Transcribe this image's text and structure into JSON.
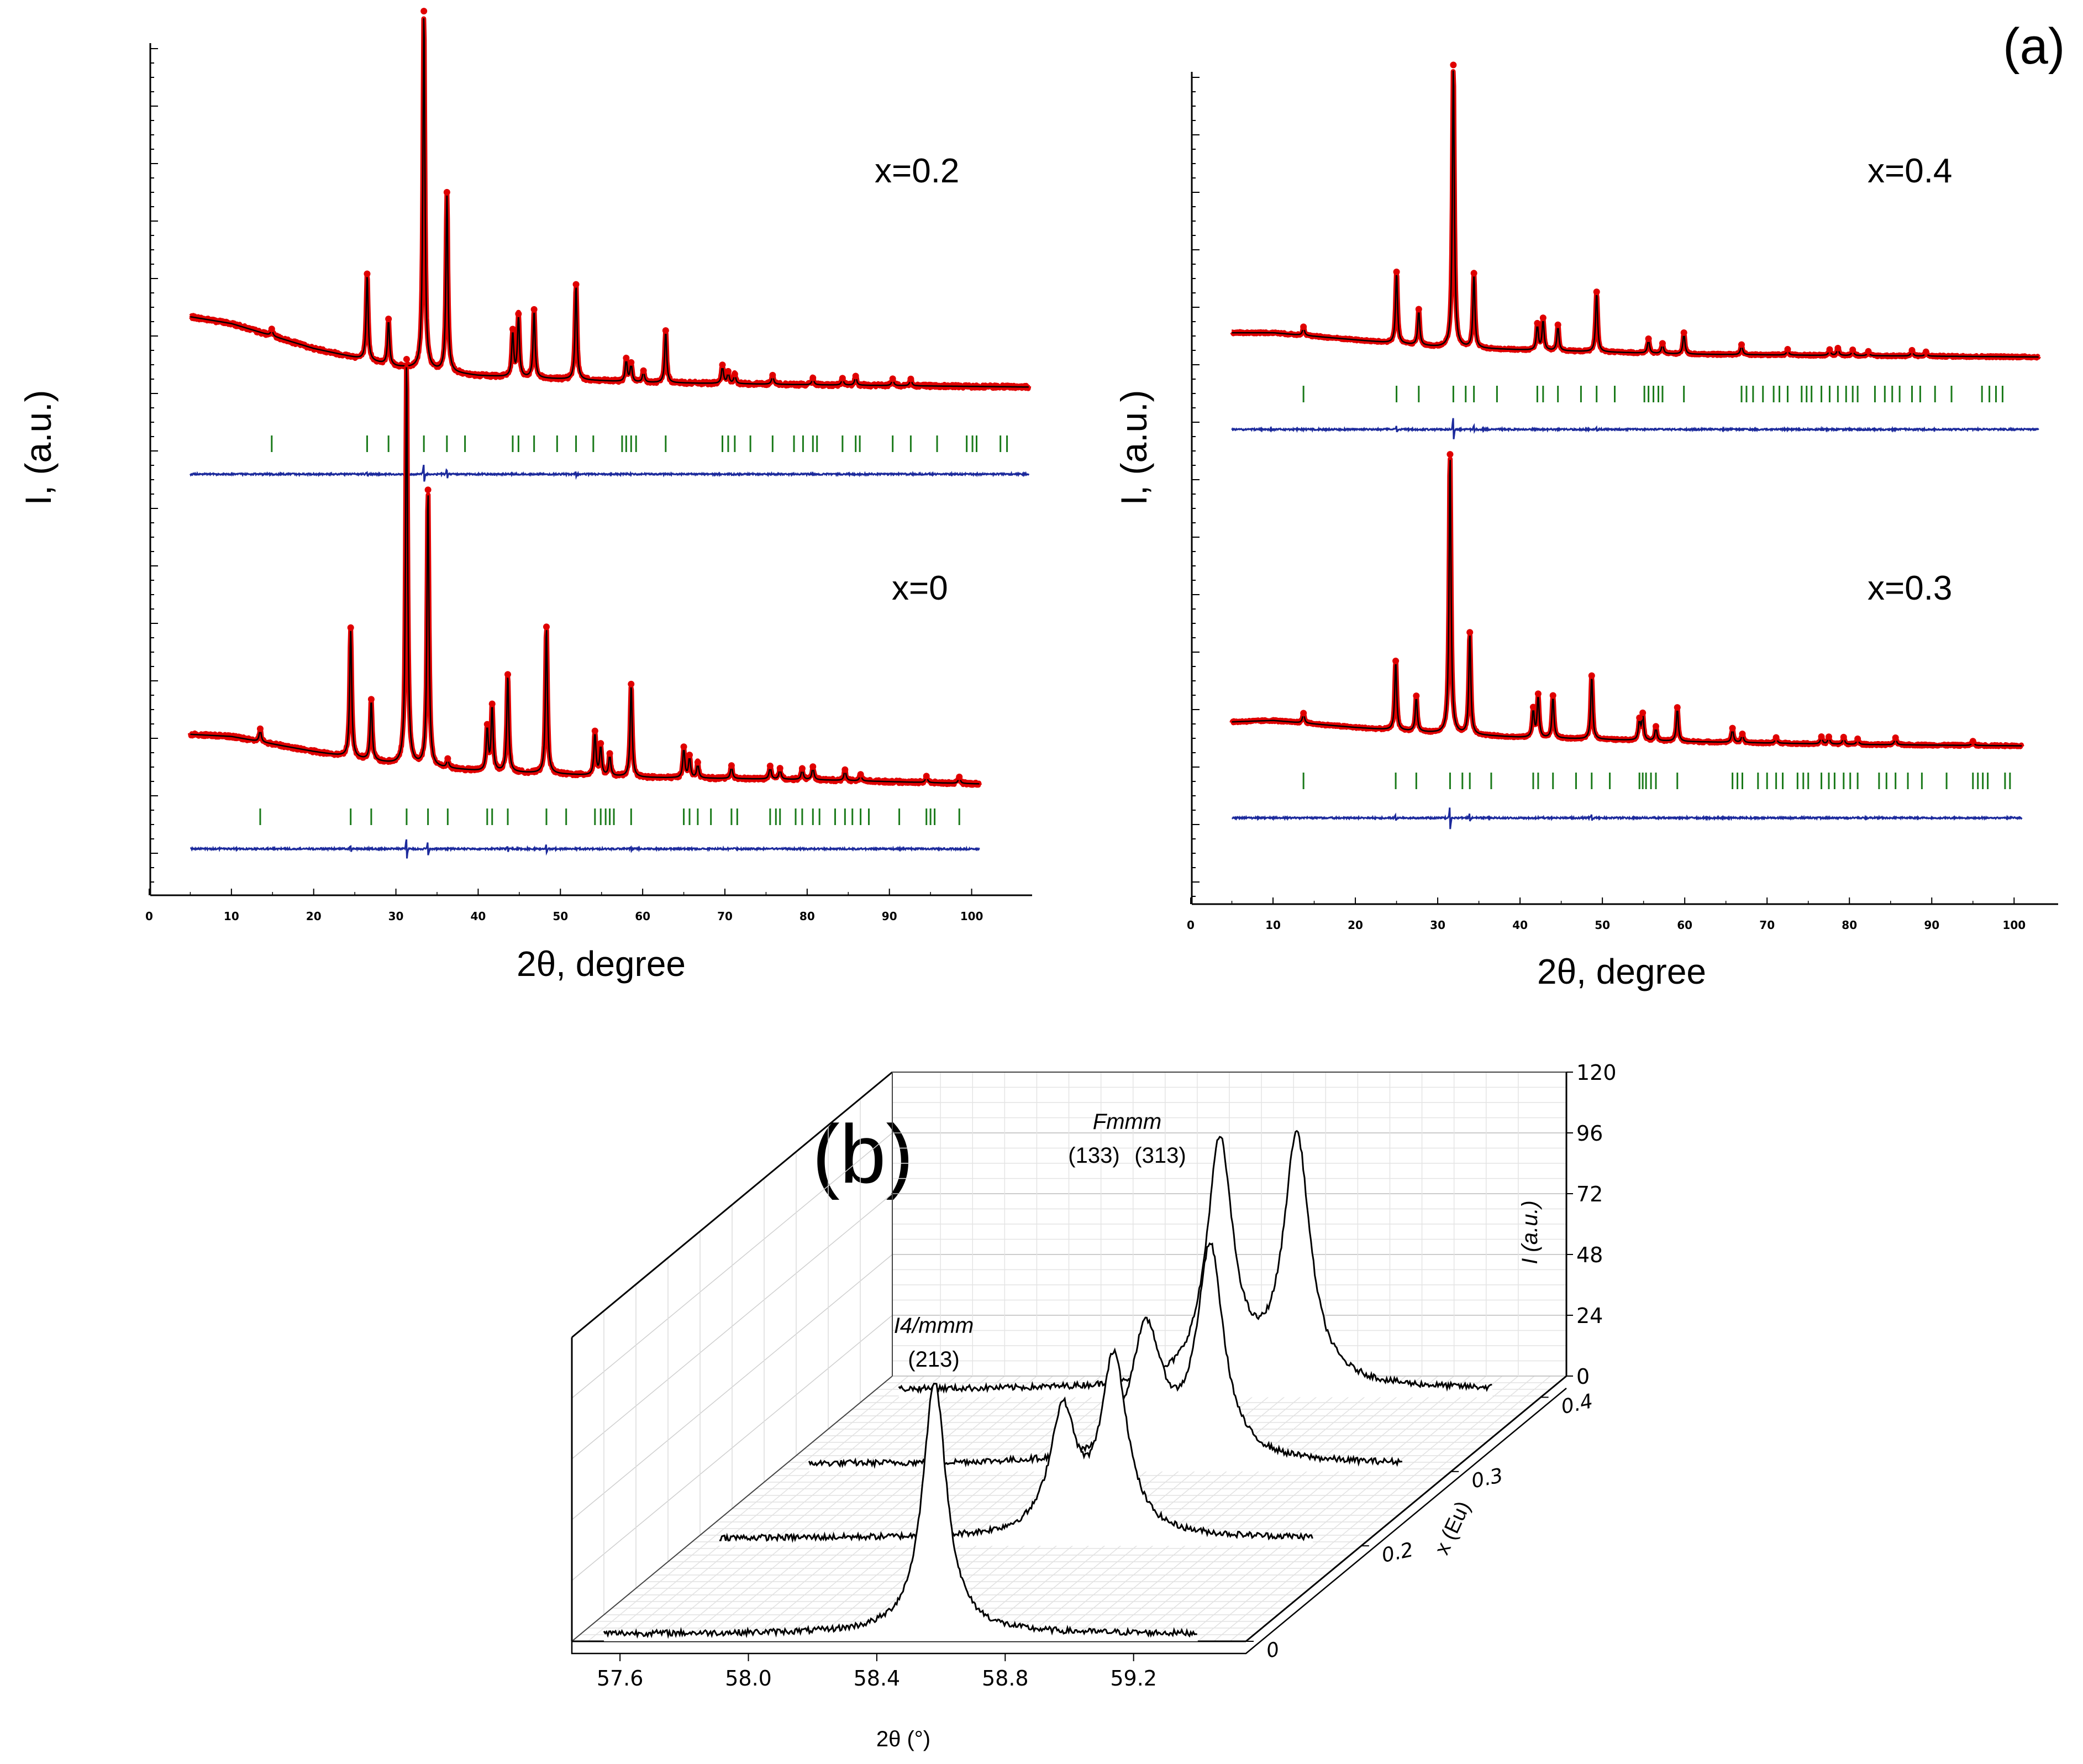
{
  "figure": {
    "label_a": "(a)",
    "label_b": "(b)"
  },
  "chart_data": [
    {
      "type": "line",
      "panel": "a-left",
      "ylabel": "I, (a.u.)",
      "xlabel": "2θ, degree",
      "xlim": [
        0,
        105
      ],
      "xticks": [
        "0",
        "10",
        "20",
        "30",
        "40",
        "50",
        "60",
        "70",
        "80",
        "90",
        "100"
      ],
      "subplots": [
        {
          "label": "x=0.2",
          "background": {
            "x": [
              5,
              10,
              20,
              30,
              40,
              60,
              80,
              107
            ],
            "y": [
              48,
              45,
              34,
              26,
              22,
              19,
              18,
              17
            ]
          },
          "peaks": [
            {
              "x": 14.9,
              "h": 3
            },
            {
              "x": 26.5,
              "h": 38
            },
            {
              "x": 29.1,
              "h": 20
            },
            {
              "x": 33.4,
              "h": 158
            },
            {
              "x": 36.2,
              "h": 79
            },
            {
              "x": 44.2,
              "h": 20
            },
            {
              "x": 44.9,
              "h": 27
            },
            {
              "x": 46.8,
              "h": 30
            },
            {
              "x": 51.9,
              "h": 42
            },
            {
              "x": 58.0,
              "h": 10
            },
            {
              "x": 58.6,
              "h": 8
            },
            {
              "x": 60.1,
              "h": 5
            },
            {
              "x": 62.8,
              "h": 23
            },
            {
              "x": 69.7,
              "h": 8
            },
            {
              "x": 70.4,
              "h": 5
            },
            {
              "x": 71.2,
              "h": 4
            },
            {
              "x": 75.8,
              "h": 4
            },
            {
              "x": 80.7,
              "h": 3
            },
            {
              "x": 84.3,
              "h": 3
            },
            {
              "x": 85.9,
              "h": 4
            },
            {
              "x": 90.4,
              "h": 3
            },
            {
              "x": 92.6,
              "h": 3
            }
          ],
          "bragg_ticks": [
            14.9,
            26.5,
            29.1,
            33.4,
            36.2,
            38.4,
            44.2,
            44.9,
            46.8,
            49.6,
            51.9,
            54.0,
            57.5,
            58.0,
            58.6,
            59.2,
            62.8,
            69.7,
            70.4,
            71.2,
            73.1,
            75.8,
            78.4,
            79.5,
            80.7,
            81.2,
            84.3,
            85.9,
            86.4,
            90.4,
            92.6,
            95.8,
            99.4,
            100.1,
            100.6,
            103.5,
            104.3
          ]
        },
        {
          "label": "x=0",
          "background": {
            "x": [
              5,
              10,
              20,
              30,
              40,
              60,
              80,
              101
            ],
            "y": [
              28,
              27,
              20,
              14,
              11,
              8,
              7,
              5
            ]
          },
          "peaks": [
            {
              "x": 13.5,
              "h": 6
            },
            {
              "x": 24.5,
              "h": 60
            },
            {
              "x": 27.0,
              "h": 28
            },
            {
              "x": 31.3,
              "h": 188
            },
            {
              "x": 33.9,
              "h": 128
            },
            {
              "x": 36.3,
              "h": 4
            },
            {
              "x": 41.1,
              "h": 20
            },
            {
              "x": 41.7,
              "h": 30
            },
            {
              "x": 43.6,
              "h": 45
            },
            {
              "x": 48.3,
              "h": 68
            },
            {
              "x": 54.2,
              "h": 20
            },
            {
              "x": 54.9,
              "h": 14
            },
            {
              "x": 56.0,
              "h": 10
            },
            {
              "x": 58.6,
              "h": 43
            },
            {
              "x": 65.0,
              "h": 14
            },
            {
              "x": 65.7,
              "h": 10
            },
            {
              "x": 66.7,
              "h": 7
            },
            {
              "x": 70.8,
              "h": 6
            },
            {
              "x": 75.5,
              "h": 6
            },
            {
              "x": 76.7,
              "h": 5
            },
            {
              "x": 79.4,
              "h": 5
            },
            {
              "x": 80.7,
              "h": 6
            },
            {
              "x": 84.6,
              "h": 5
            },
            {
              "x": 86.5,
              "h": 3
            },
            {
              "x": 94.5,
              "h": 3
            },
            {
              "x": 98.5,
              "h": 3
            }
          ],
          "bragg_ticks": [
            13.5,
            24.5,
            27.0,
            31.3,
            33.9,
            36.3,
            41.1,
            41.7,
            43.6,
            48.3,
            50.7,
            54.2,
            54.9,
            55.5,
            56.0,
            56.5,
            58.6,
            65.0,
            65.7,
            66.7,
            68.3,
            70.8,
            71.5,
            75.5,
            76.2,
            76.7,
            78.6,
            79.4,
            80.7,
            81.5,
            83.4,
            84.6,
            85.5,
            86.5,
            87.5,
            91.2,
            94.5,
            95.0,
            95.5,
            98.5
          ]
        }
      ]
    },
    {
      "type": "line",
      "panel": "a-right",
      "ylabel": "I, (a.u.)",
      "xlabel": "2θ, degree",
      "xlim": [
        0,
        103
      ],
      "xticks": [
        "0",
        "10",
        "20",
        "30",
        "40",
        "50",
        "60",
        "70",
        "80",
        "90",
        "100"
      ],
      "subplots": [
        {
          "label": "x=0.4",
          "background": {
            "x": [
              5,
              10,
              20,
              30,
              40,
              60,
              80,
              103
            ],
            "y": [
              36,
              36,
              31,
              26,
              24,
              21,
              20,
              19
            ]
          },
          "peaks": [
            {
              "x": 13.7,
              "h": 6
            },
            {
              "x": 25.0,
              "h": 50
            },
            {
              "x": 27.7,
              "h": 25
            },
            {
              "x": 31.9,
              "h": 198
            },
            {
              "x": 34.4,
              "h": 52
            },
            {
              "x": 42.1,
              "h": 18
            },
            {
              "x": 42.8,
              "h": 22
            },
            {
              "x": 44.6,
              "h": 18
            },
            {
              "x": 49.3,
              "h": 42
            },
            {
              "x": 55.6,
              "h": 10
            },
            {
              "x": 57.3,
              "h": 7
            },
            {
              "x": 59.9,
              "h": 15
            },
            {
              "x": 66.9,
              "h": 7
            },
            {
              "x": 72.5,
              "h": 4
            },
            {
              "x": 77.6,
              "h": 4
            },
            {
              "x": 78.6,
              "h": 5
            },
            {
              "x": 80.4,
              "h": 4
            },
            {
              "x": 82.3,
              "h": 3
            },
            {
              "x": 87.6,
              "h": 4
            },
            {
              "x": 89.3,
              "h": 3
            }
          ],
          "bragg_ticks": [
            13.7,
            25.0,
            27.7,
            31.9,
            33.4,
            34.4,
            37.2,
            42.1,
            42.8,
            44.6,
            47.4,
            49.3,
            51.5,
            55.1,
            55.6,
            56.2,
            56.8,
            57.3,
            59.9,
            66.9,
            67.5,
            68.3,
            69.5,
            70.8,
            71.5,
            72.5,
            74.2,
            74.8,
            75.4,
            76.6,
            77.6,
            78.6,
            79.6,
            80.4,
            81.0,
            83.1,
            84.3,
            85.2,
            86.1,
            87.6,
            88.6,
            90.4,
            92.4,
            96.1,
            97.0,
            97.8,
            98.6
          ]
        },
        {
          "label": "x=0.3",
          "background": {
            "x": [
              5,
              10,
              20,
              30,
              40,
              60,
              80,
              101
            ],
            "y": [
              25,
              26,
              21,
              17,
              14,
              11,
              9,
              8
            ]
          },
          "peaks": [
            {
              "x": 13.7,
              "h": 7
            },
            {
              "x": 24.9,
              "h": 49
            },
            {
              "x": 27.4,
              "h": 25
            },
            {
              "x": 31.5,
              "h": 198
            },
            {
              "x": 33.9,
              "h": 72
            },
            {
              "x": 41.6,
              "h": 20
            },
            {
              "x": 42.2,
              "h": 30
            },
            {
              "x": 44.0,
              "h": 30
            },
            {
              "x": 48.7,
              "h": 45
            },
            {
              "x": 54.5,
              "h": 14
            },
            {
              "x": 54.9,
              "h": 18
            },
            {
              "x": 56.5,
              "h": 10
            },
            {
              "x": 59.1,
              "h": 24
            },
            {
              "x": 65.8,
              "h": 10
            },
            {
              "x": 67.0,
              "h": 6
            },
            {
              "x": 71.1,
              "h": 4
            },
            {
              "x": 76.6,
              "h": 5
            },
            {
              "x": 77.5,
              "h": 5
            },
            {
              "x": 79.3,
              "h": 5
            },
            {
              "x": 81.0,
              "h": 4
            },
            {
              "x": 85.6,
              "h": 5
            },
            {
              "x": 95.0,
              "h": 3
            }
          ],
          "bragg_ticks": [
            13.7,
            24.9,
            27.4,
            31.5,
            33.0,
            33.9,
            36.5,
            41.6,
            42.2,
            44.0,
            46.8,
            48.7,
            50.9,
            54.5,
            54.9,
            55.3,
            55.9,
            56.5,
            59.1,
            65.8,
            66.4,
            67.0,
            68.9,
            70.0,
            71.1,
            71.9,
            73.7,
            74.4,
            75.0,
            76.6,
            77.5,
            78.2,
            79.3,
            80.1,
            81.0,
            83.6,
            84.5,
            85.6,
            87.1,
            88.8,
            91.8,
            95.0,
            95.6,
            96.2,
            96.8,
            98.9,
            99.5
          ]
        }
      ]
    },
    {
      "type": "line",
      "panel": "b",
      "subtype": "3d-waterfall",
      "x_axis_label": "2θ (°)",
      "y_axis_label": "I (a.u.)",
      "z_axis_label": "x (Eu)",
      "xticks": [
        "57.6",
        "58.0",
        "58.4",
        "58.8",
        "59.2"
      ],
      "ylim": [
        0,
        120
      ],
      "yticks": [
        "0",
        "24",
        "48",
        "72",
        "96",
        "120"
      ],
      "zticks": [
        "0",
        "0.2",
        "0.3",
        "0.4"
      ],
      "annotations": {
        "tetragonal_group": "I4/mmm",
        "tetragonal_reflection": "(213)",
        "orthorhombic_group": "Fmmm",
        "orthorhombic_reflection_1": "(133)",
        "orthorhombic_reflection_2": "(313)"
      },
      "series": [
        {
          "name": "0",
          "peaks": [
            {
              "x": 58.58,
              "h": 100,
              "w": 0.045
            }
          ]
        },
        {
          "name": "0.2",
          "peaks": [
            {
              "x": 58.62,
              "h": 48,
              "w": 0.05
            },
            {
              "x": 58.78,
              "h": 70,
              "w": 0.05
            }
          ]
        },
        {
          "name": "0.3",
          "peaks": [
            {
              "x": 58.6,
              "h": 52,
              "w": 0.06
            },
            {
              "x": 58.8,
              "h": 83,
              "w": 0.05
            }
          ]
        },
        {
          "name": "0.4",
          "peaks": [
            {
              "x": 58.55,
              "h": 96,
              "w": 0.05
            },
            {
              "x": 58.79,
              "h": 98,
              "w": 0.05
            }
          ]
        }
      ]
    }
  ]
}
